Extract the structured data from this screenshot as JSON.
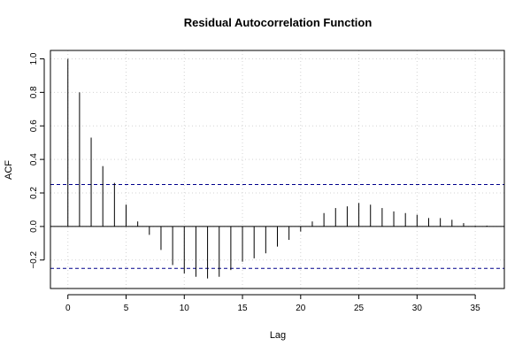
{
  "chart_data": {
    "type": "bar",
    "title": "Residual Autocorrelation Function",
    "xlabel": "Lag",
    "ylabel": "ACF",
    "xlim": [
      -1.5,
      37.5
    ],
    "ylim": [
      -0.37,
      1.05
    ],
    "xticks": [
      0,
      5,
      10,
      15,
      20,
      25,
      30,
      35
    ],
    "yticks": [
      -0.2,
      0.0,
      0.2,
      0.4,
      0.6,
      0.8,
      1.0
    ],
    "ytick_labels": [
      "−0.2",
      "0.0",
      "0.2",
      "0.4",
      "0.6",
      "0.8",
      "1.0"
    ],
    "grid": true,
    "confidence_bound": 0.25,
    "lags": [
      0,
      1,
      2,
      3,
      4,
      5,
      6,
      7,
      8,
      9,
      10,
      11,
      12,
      13,
      14,
      15,
      16,
      17,
      18,
      19,
      20,
      21,
      22,
      23,
      24,
      25,
      26,
      27,
      28,
      29,
      30,
      31,
      32,
      33,
      34,
      35,
      36
    ],
    "acf": [
      1.0,
      0.8,
      0.53,
      0.36,
      0.26,
      0.13,
      0.03,
      -0.05,
      -0.14,
      -0.23,
      -0.28,
      -0.3,
      -0.31,
      -0.3,
      -0.26,
      -0.21,
      -0.19,
      -0.16,
      -0.12,
      -0.08,
      -0.03,
      0.03,
      0.08,
      0.11,
      0.12,
      0.14,
      0.13,
      0.11,
      0.09,
      0.08,
      0.07,
      0.05,
      0.05,
      0.04,
      0.02,
      0.005,
      0.005
    ],
    "colors": {
      "bars": "#000000",
      "zero_line": "#000000",
      "bound_lines": "#00008b",
      "grid": "#d3d3d3",
      "frame": "#000000"
    }
  }
}
